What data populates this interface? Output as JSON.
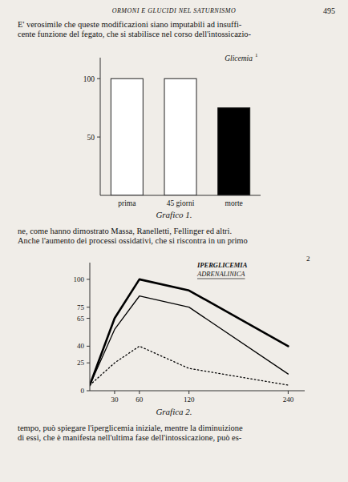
{
  "page": {
    "title": "ORMONI E GLUCIDI NEL SATURNISMO",
    "number": "495",
    "text": [
      "E' verosimile che queste modificazioni siano imputabili ad insuffi-",
      "cente funzione del fegato, che si stabilisce nel corso dell'intossicazio-",
      "ne, come hanno dimostrato Massa, Ranelletti, Fellinger ed altri.",
      "Anche l'aumento dei processi ossidativi, che si riscontra in un primo",
      "tempo, può spiegare l'iperglicemia iniziale, mentre la diminuizione",
      "di essi, che è manifesta nell'ultima fase dell'intossicazione, può es-"
    ]
  },
  "chart_data": [
    {
      "type": "bar",
      "title": "Grafico 1.",
      "annotations": [
        "Glicemia",
        "1"
      ],
      "categories": [
        "prima",
        "45 giorni",
        "morte"
      ],
      "values": [
        100,
        100,
        75
      ],
      "colors": [
        "#ffffff",
        "#ffffff",
        "#000000"
      ],
      "ylim": [
        0,
        118
      ],
      "yticks": [
        50,
        100
      ],
      "grid": false
    },
    {
      "type": "line",
      "title": "Grafica 2.",
      "annotations": [
        "IPERGLICEMIA",
        "ADRENALINICA",
        "2"
      ],
      "x": [
        0,
        30,
        60,
        120,
        240
      ],
      "series": [
        {
          "color": "#000000",
          "line_style": "solid",
          "values": [
            5,
            65,
            100,
            90,
            40
          ]
        },
        {
          "color": "#000000",
          "line_style": "solid",
          "values": [
            5,
            55,
            85,
            75,
            15
          ]
        },
        {
          "color": "#000000",
          "line_style": "dotted",
          "values": [
            5,
            25,
            40,
            20,
            5
          ]
        }
      ],
      "xlim": [
        0,
        260
      ],
      "xticks": [
        30,
        60,
        120,
        240
      ],
      "ylim": [
        0,
        115
      ],
      "yticks": [
        0,
        25,
        40,
        65,
        75,
        100
      ],
      "grid": false
    }
  ]
}
